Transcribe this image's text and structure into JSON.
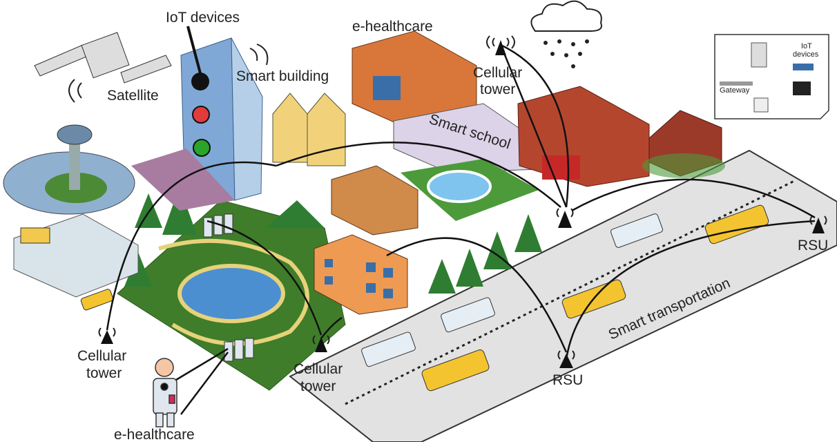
{
  "labels": {
    "iot_devices_top": "IoT devices",
    "satellite": "Satellite",
    "smart_building": "Smart building",
    "e_healthcare_top": "e-healthcare",
    "cellular_tower_top": [
      "Cellular",
      "tower"
    ],
    "smart_school": "Smart school",
    "inset_iot_devices": [
      "IoT",
      "devices"
    ],
    "gateway": "Gateway",
    "rsu_right": "RSU",
    "rsu_bottom": "RSU",
    "smart_transportation": "Smart transportation",
    "cellular_tower_left": [
      "Cellular",
      "tower"
    ],
    "cellular_tower_middle": [
      "Cellular",
      "tower"
    ],
    "e_healthcare_bottom": "e-healthcare"
  }
}
